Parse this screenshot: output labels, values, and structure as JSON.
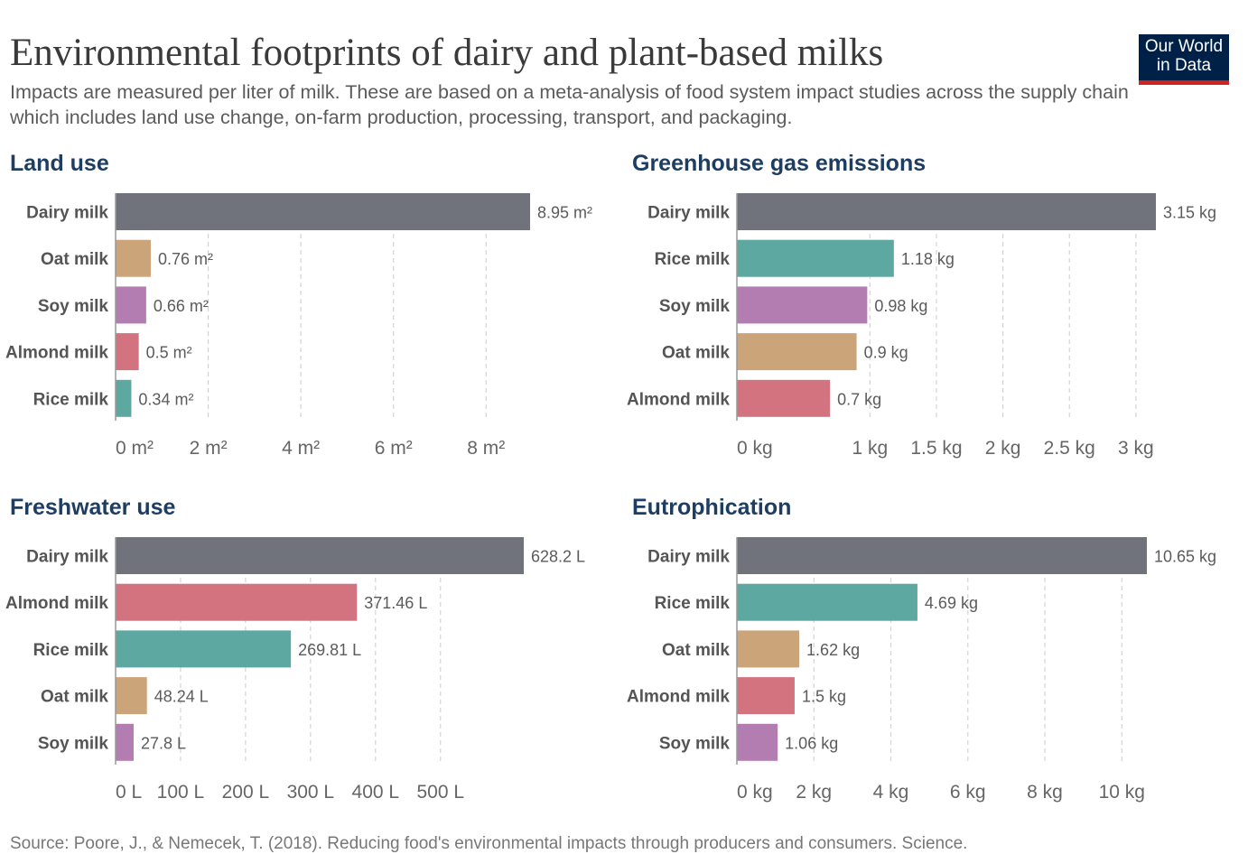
{
  "title": "Environmental footprints of dairy and plant-based milks",
  "subtitle": "Impacts are measured per liter of milk. These are based on a meta-analysis of food system impact studies across the supply chain which includes land use change, on-farm production, processing, transport, and packaging.",
  "logo": {
    "line1": "Our World",
    "line2": "in Data"
  },
  "footer": "Source: Poore, J., & Nemecek, T. (2018). Reducing food's environmental impacts through producers and consumers. Science.",
  "colors": {
    "Dairy milk": "#70737c",
    "Oat milk": "#cca479",
    "Soy milk": "#b47db2",
    "Almond milk": "#d3737f",
    "Rice milk": "#5da8a1"
  },
  "chart_data": [
    {
      "type": "bar",
      "orientation": "horizontal",
      "title": "Land use",
      "categories": [
        "Dairy milk",
        "Oat milk",
        "Soy milk",
        "Almond milk",
        "Rice milk"
      ],
      "values": [
        8.95,
        0.76,
        0.66,
        0.5,
        0.34
      ],
      "value_labels": [
        "8.95 m²",
        "0.76 m²",
        "0.66 m²",
        "0.5 m²",
        "0.34 m²"
      ],
      "xlim": [
        0,
        9.6
      ],
      "ticks": [
        0,
        2,
        4,
        6,
        8
      ],
      "tick_labels": [
        "0 m²",
        "2 m²",
        "4 m²",
        "6 m²",
        "8 m²"
      ],
      "grid": true
    },
    {
      "type": "bar",
      "orientation": "horizontal",
      "title": "Greenhouse gas emissions",
      "categories": [
        "Dairy milk",
        "Rice milk",
        "Soy milk",
        "Oat milk",
        "Almond milk"
      ],
      "values": [
        3.15,
        1.18,
        0.98,
        0.9,
        0.7
      ],
      "value_labels": [
        "3.15 kg",
        "1.18 kg",
        "0.98 kg",
        "0.9 kg",
        "0.7 kg"
      ],
      "xlim": [
        0,
        3.15
      ],
      "ticks": [
        0,
        1,
        1.5,
        2,
        2.5,
        3
      ],
      "tick_labels": [
        "0 kg",
        "1 kg",
        "1.5 kg",
        "2 kg",
        "2.5 kg",
        "3 kg"
      ],
      "grid": true
    },
    {
      "type": "bar",
      "orientation": "horizontal",
      "title": "Freshwater use",
      "categories": [
        "Dairy milk",
        "Almond milk",
        "Rice milk",
        "Oat milk",
        "Soy milk"
      ],
      "values": [
        628.2,
        371.46,
        269.81,
        48.24,
        27.8
      ],
      "value_labels": [
        "628.2 L",
        "371.46 L",
        "269.81 L",
        "48.24 L",
        "27.8 L"
      ],
      "xlim": [
        0,
        628.2
      ],
      "ticks": [
        0,
        100,
        200,
        300,
        400,
        500
      ],
      "tick_labels": [
        "0 L",
        "100 L",
        "200 L",
        "300 L",
        "400 L",
        "500 L"
      ],
      "grid": true
    },
    {
      "type": "bar",
      "orientation": "horizontal",
      "title": "Eutrophication",
      "categories": [
        "Dairy milk",
        "Rice milk",
        "Oat milk",
        "Almond milk",
        "Soy milk"
      ],
      "values": [
        10.65,
        4.69,
        1.62,
        1.5,
        1.06
      ],
      "value_labels": [
        "10.65 kg",
        "4.69 kg",
        "1.62 kg",
        "1.5 kg",
        "1.06 kg"
      ],
      "xlim": [
        0,
        10.65
      ],
      "ticks": [
        0,
        2,
        4,
        6,
        8,
        10
      ],
      "tick_labels": [
        "0 kg",
        "2 kg",
        "4 kg",
        "6 kg",
        "8 kg",
        "10 kg"
      ],
      "grid": true
    }
  ]
}
